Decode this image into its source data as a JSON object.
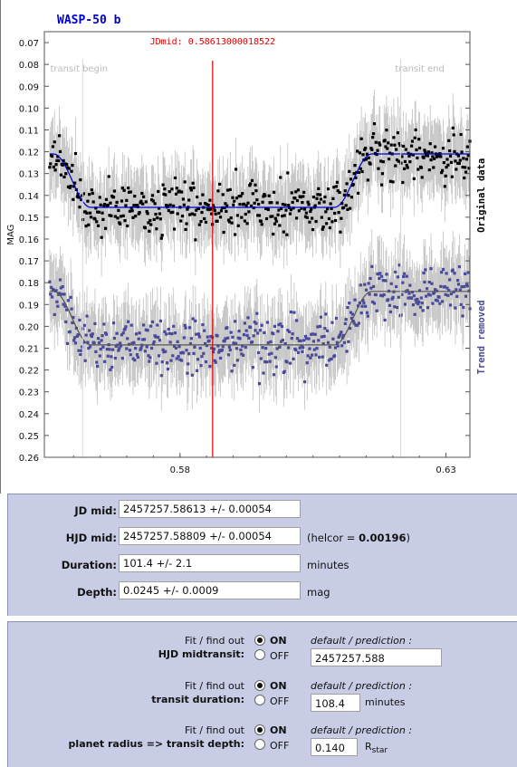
{
  "chart_data": {
    "type": "scatter",
    "title": "WASP-50 b",
    "annotation": "JDmid: 0.58613000018522",
    "ylabel": "MAG",
    "xlim": [
      0.5545,
      0.6345
    ],
    "ylim": [
      0.065,
      0.26
    ],
    "y_inverted": true,
    "x_ticks": [
      0.58,
      0.63
    ],
    "x_tick_labels": [
      "0.58",
      "0.63"
    ],
    "y_ticks": [
      0.07,
      0.08,
      0.09,
      0.1,
      0.11,
      0.12,
      0.13,
      0.14,
      0.15,
      0.16,
      0.17,
      0.18,
      0.19,
      0.2,
      0.21,
      0.22,
      0.23,
      0.24,
      0.25,
      0.26
    ],
    "y_tick_labels": [
      "0.07",
      "0.08",
      "0.09",
      "0.10",
      "0.11",
      "0.12",
      "0.13",
      "0.14",
      "0.15",
      "0.16",
      "0.17",
      "0.18",
      "0.19",
      "0.20",
      "0.21",
      "0.22",
      "0.23",
      "0.24",
      "0.25",
      "0.26"
    ],
    "midtransit_x": 0.58613,
    "transit_begin_x": 0.5617,
    "transit_end_x": 0.6215,
    "transit_begin_label": "transit begin",
    "transit_end_label": "transit end",
    "series": [
      {
        "name": "Original data",
        "color": "#000000",
        "model_color": "#0000cc",
        "baseline": 0.121,
        "depth": 0.0245
      },
      {
        "name": "Trend removed",
        "color": "#4a4a9a",
        "model_color": "#555555",
        "baseline": 0.184,
        "depth": 0.0245
      }
    ],
    "colors": {
      "midline": "#dd0000",
      "errorbar": "#c0c0c0"
    }
  },
  "results": {
    "jd_mid_label": "JD mid:",
    "jd_mid_value": "2457257.58613 +/- 0.00054",
    "hjd_mid_label": "HJD mid:",
    "hjd_mid_value": "2457257.58809 +/- 0.00054",
    "helcor_prefix": "(helcor = ",
    "helcor_value": "0.00196",
    "helcor_suffix": ")",
    "duration_label": "Duration:",
    "duration_value": "101.4 +/- 2.1",
    "duration_unit": "minutes",
    "depth_label": "Depth:",
    "depth_value": "0.0245 +/- 0.0009",
    "depth_unit": "mag"
  },
  "fits": {
    "fit_label": "Fit / find out",
    "on_label": "ON",
    "off_label": "OFF",
    "default_label": "default / prediction :",
    "midtransit_title": "HJD midtransit:",
    "midtransit_default": "2457257.588",
    "duration_title": "transit duration:",
    "duration_default": "108.4",
    "duration_unit": "minutes",
    "radius_title": "planet radius => transit depth:",
    "radius_default": "0.140",
    "radius_unit_main": "R",
    "radius_unit_sub": "star"
  }
}
